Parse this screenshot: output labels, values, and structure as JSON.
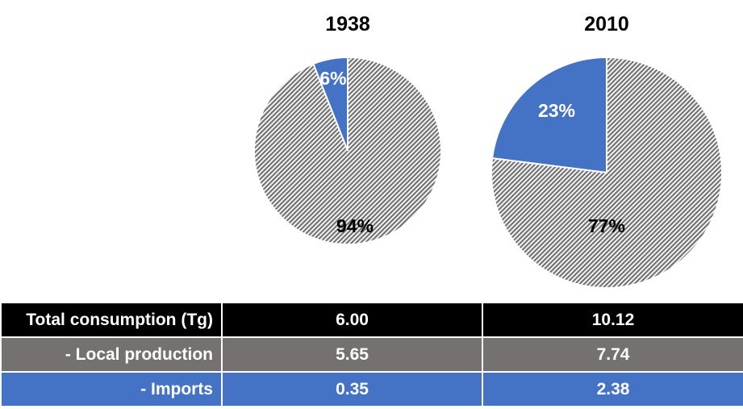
{
  "chart_data": [
    {
      "type": "pie",
      "title": "1938",
      "slices": [
        {
          "label": "6%",
          "value": 6,
          "series": "Imports",
          "color": "#4472c4"
        },
        {
          "label": "94%",
          "value": 94,
          "series": "Local production",
          "color": "#7f7f7f",
          "pattern": "diagonal-hatch"
        }
      ]
    },
    {
      "type": "pie",
      "title": "2010",
      "slices": [
        {
          "label": "23%",
          "value": 23,
          "series": "Imports",
          "color": "#4472c4"
        },
        {
          "label": "77%",
          "value": 77,
          "series": "Local production",
          "color": "#7f7f7f",
          "pattern": "diagonal-hatch"
        }
      ]
    }
  ],
  "table": {
    "rows": [
      {
        "label": "Total consumption (Tg)",
        "values": [
          "6.00",
          "10.12"
        ]
      },
      {
        "label": "- Local production",
        "values": [
          "5.65",
          "7.74"
        ]
      },
      {
        "label": "- Imports",
        "values": [
          "0.35",
          "2.38"
        ]
      }
    ]
  },
  "colors": {
    "imports": "#4472c4",
    "local": "#7f7f7f",
    "total_row": "#000000",
    "local_row": "#767171",
    "imports_row": "#4472c4"
  }
}
